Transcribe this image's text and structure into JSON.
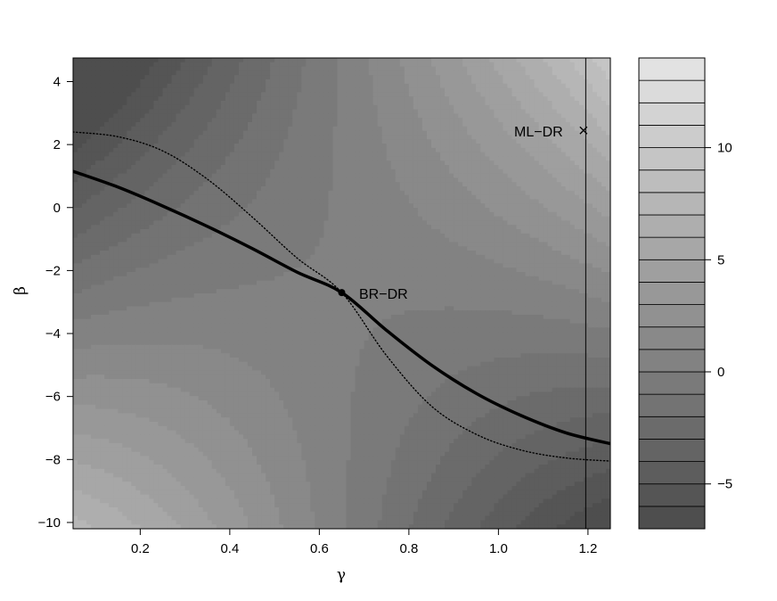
{
  "chart_data": {
    "type": "heatmap",
    "xlabel": "γ",
    "ylabel": "β",
    "xlim": [
      0.05,
      1.25
    ],
    "ylim": [
      -10.2,
      4.75
    ],
    "x_ticks": [
      "0.2",
      "0.4",
      "0.6",
      "0.8",
      "1.0",
      "1.2"
    ],
    "x_tick_values": [
      0.2,
      0.4,
      0.6,
      0.8,
      1.0,
      1.2
    ],
    "y_ticks": [
      "4",
      "2",
      "0",
      "−2",
      "−4",
      "−6",
      "−8",
      "−10"
    ],
    "y_tick_values": [
      4,
      2,
      0,
      -2,
      -4,
      -6,
      -8,
      -10
    ],
    "colorbar": {
      "range": [
        -7,
        14
      ],
      "ticks": [
        "10",
        "5",
        "0",
        "−5"
      ],
      "tick_values": [
        10,
        5,
        0,
        -5
      ],
      "levels": [
        -7,
        -6,
        -5,
        -4,
        -3,
        -2,
        -1,
        0,
        1,
        2,
        3,
        4,
        5,
        6,
        7,
        8,
        9,
        10,
        11,
        12,
        13,
        14
      ],
      "color_low": "#4a4a4a",
      "color_high": "#e6e6e6"
    },
    "contour_surface": "saddle centered near (γ=0.65, β=-2.7); low in upper-left and lower-right corners, high in upper-right and lower-left",
    "series": [
      {
        "style": "thick solid",
        "x": [
          0.05,
          0.15,
          0.25,
          0.35,
          0.45,
          0.55,
          0.65,
          0.75,
          0.85,
          0.95,
          1.05,
          1.15,
          1.25
        ],
        "y": [
          1.15,
          0.65,
          0.05,
          -0.6,
          -1.3,
          -2.05,
          -2.7,
          -3.9,
          -5.0,
          -5.9,
          -6.6,
          -7.15,
          -7.5
        ]
      },
      {
        "style": "dotted",
        "x": [
          0.05,
          0.15,
          0.25,
          0.35,
          0.45,
          0.55,
          0.65,
          0.75,
          0.85,
          0.95,
          1.05,
          1.15,
          1.25
        ],
        "y": [
          2.4,
          2.25,
          1.8,
          0.9,
          -0.3,
          -1.6,
          -2.7,
          -4.7,
          -6.3,
          -7.2,
          -7.7,
          -7.95,
          -8.05
        ]
      }
    ],
    "vline": {
      "x": 1.195
    },
    "points": [
      {
        "label": "BR−DR",
        "x": 0.65,
        "y": -2.7,
        "marker": "dot"
      },
      {
        "label": "ML−DR",
        "x": 1.19,
        "y": 2.45,
        "marker": "cross"
      }
    ]
  }
}
